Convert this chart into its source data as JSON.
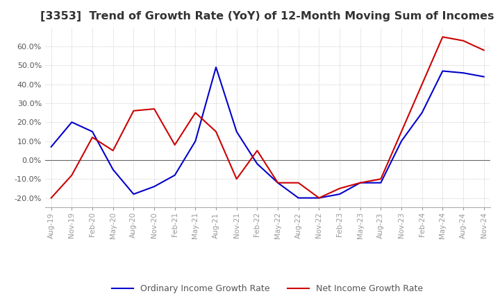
{
  "title": "[3353]  Trend of Growth Rate (YoY) of 12-Month Moving Sum of Incomes",
  "title_fontsize": 11.5,
  "ylim": [
    -25,
    70
  ],
  "yticks": [
    -20,
    -10,
    0,
    10,
    20,
    30,
    40,
    50,
    60
  ],
  "background_color": "#ffffff",
  "grid_color": "#aaaaaa",
  "ordinary_color": "#0000cc",
  "net_color": "#cc0000",
  "legend_ordinary": "Ordinary Income Growth Rate",
  "legend_net": "Net Income Growth Rate",
  "x_labels": [
    "Aug-19",
    "Nov-19",
    "Feb-20",
    "May-20",
    "Aug-20",
    "Nov-20",
    "Feb-21",
    "May-21",
    "Aug-21",
    "Nov-21",
    "Feb-22",
    "May-22",
    "Aug-22",
    "Nov-22",
    "Feb-23",
    "May-23",
    "Aug-23",
    "Nov-23",
    "Feb-24",
    "May-24",
    "Aug-24",
    "Nov-24"
  ],
  "ordinary_y": [
    7,
    20,
    15,
    -5,
    -18,
    -14,
    -8,
    10,
    49,
    15,
    -2,
    -12,
    -20,
    -20,
    -18,
    -12,
    -12,
    10,
    25,
    47,
    46,
    44
  ],
  "net_y": [
    -20,
    -8,
    12,
    5,
    26,
    27,
    8,
    25,
    15,
    -10,
    5,
    -12,
    -12,
    -20,
    -15,
    -12,
    -10,
    15,
    40,
    65,
    63,
    58
  ]
}
